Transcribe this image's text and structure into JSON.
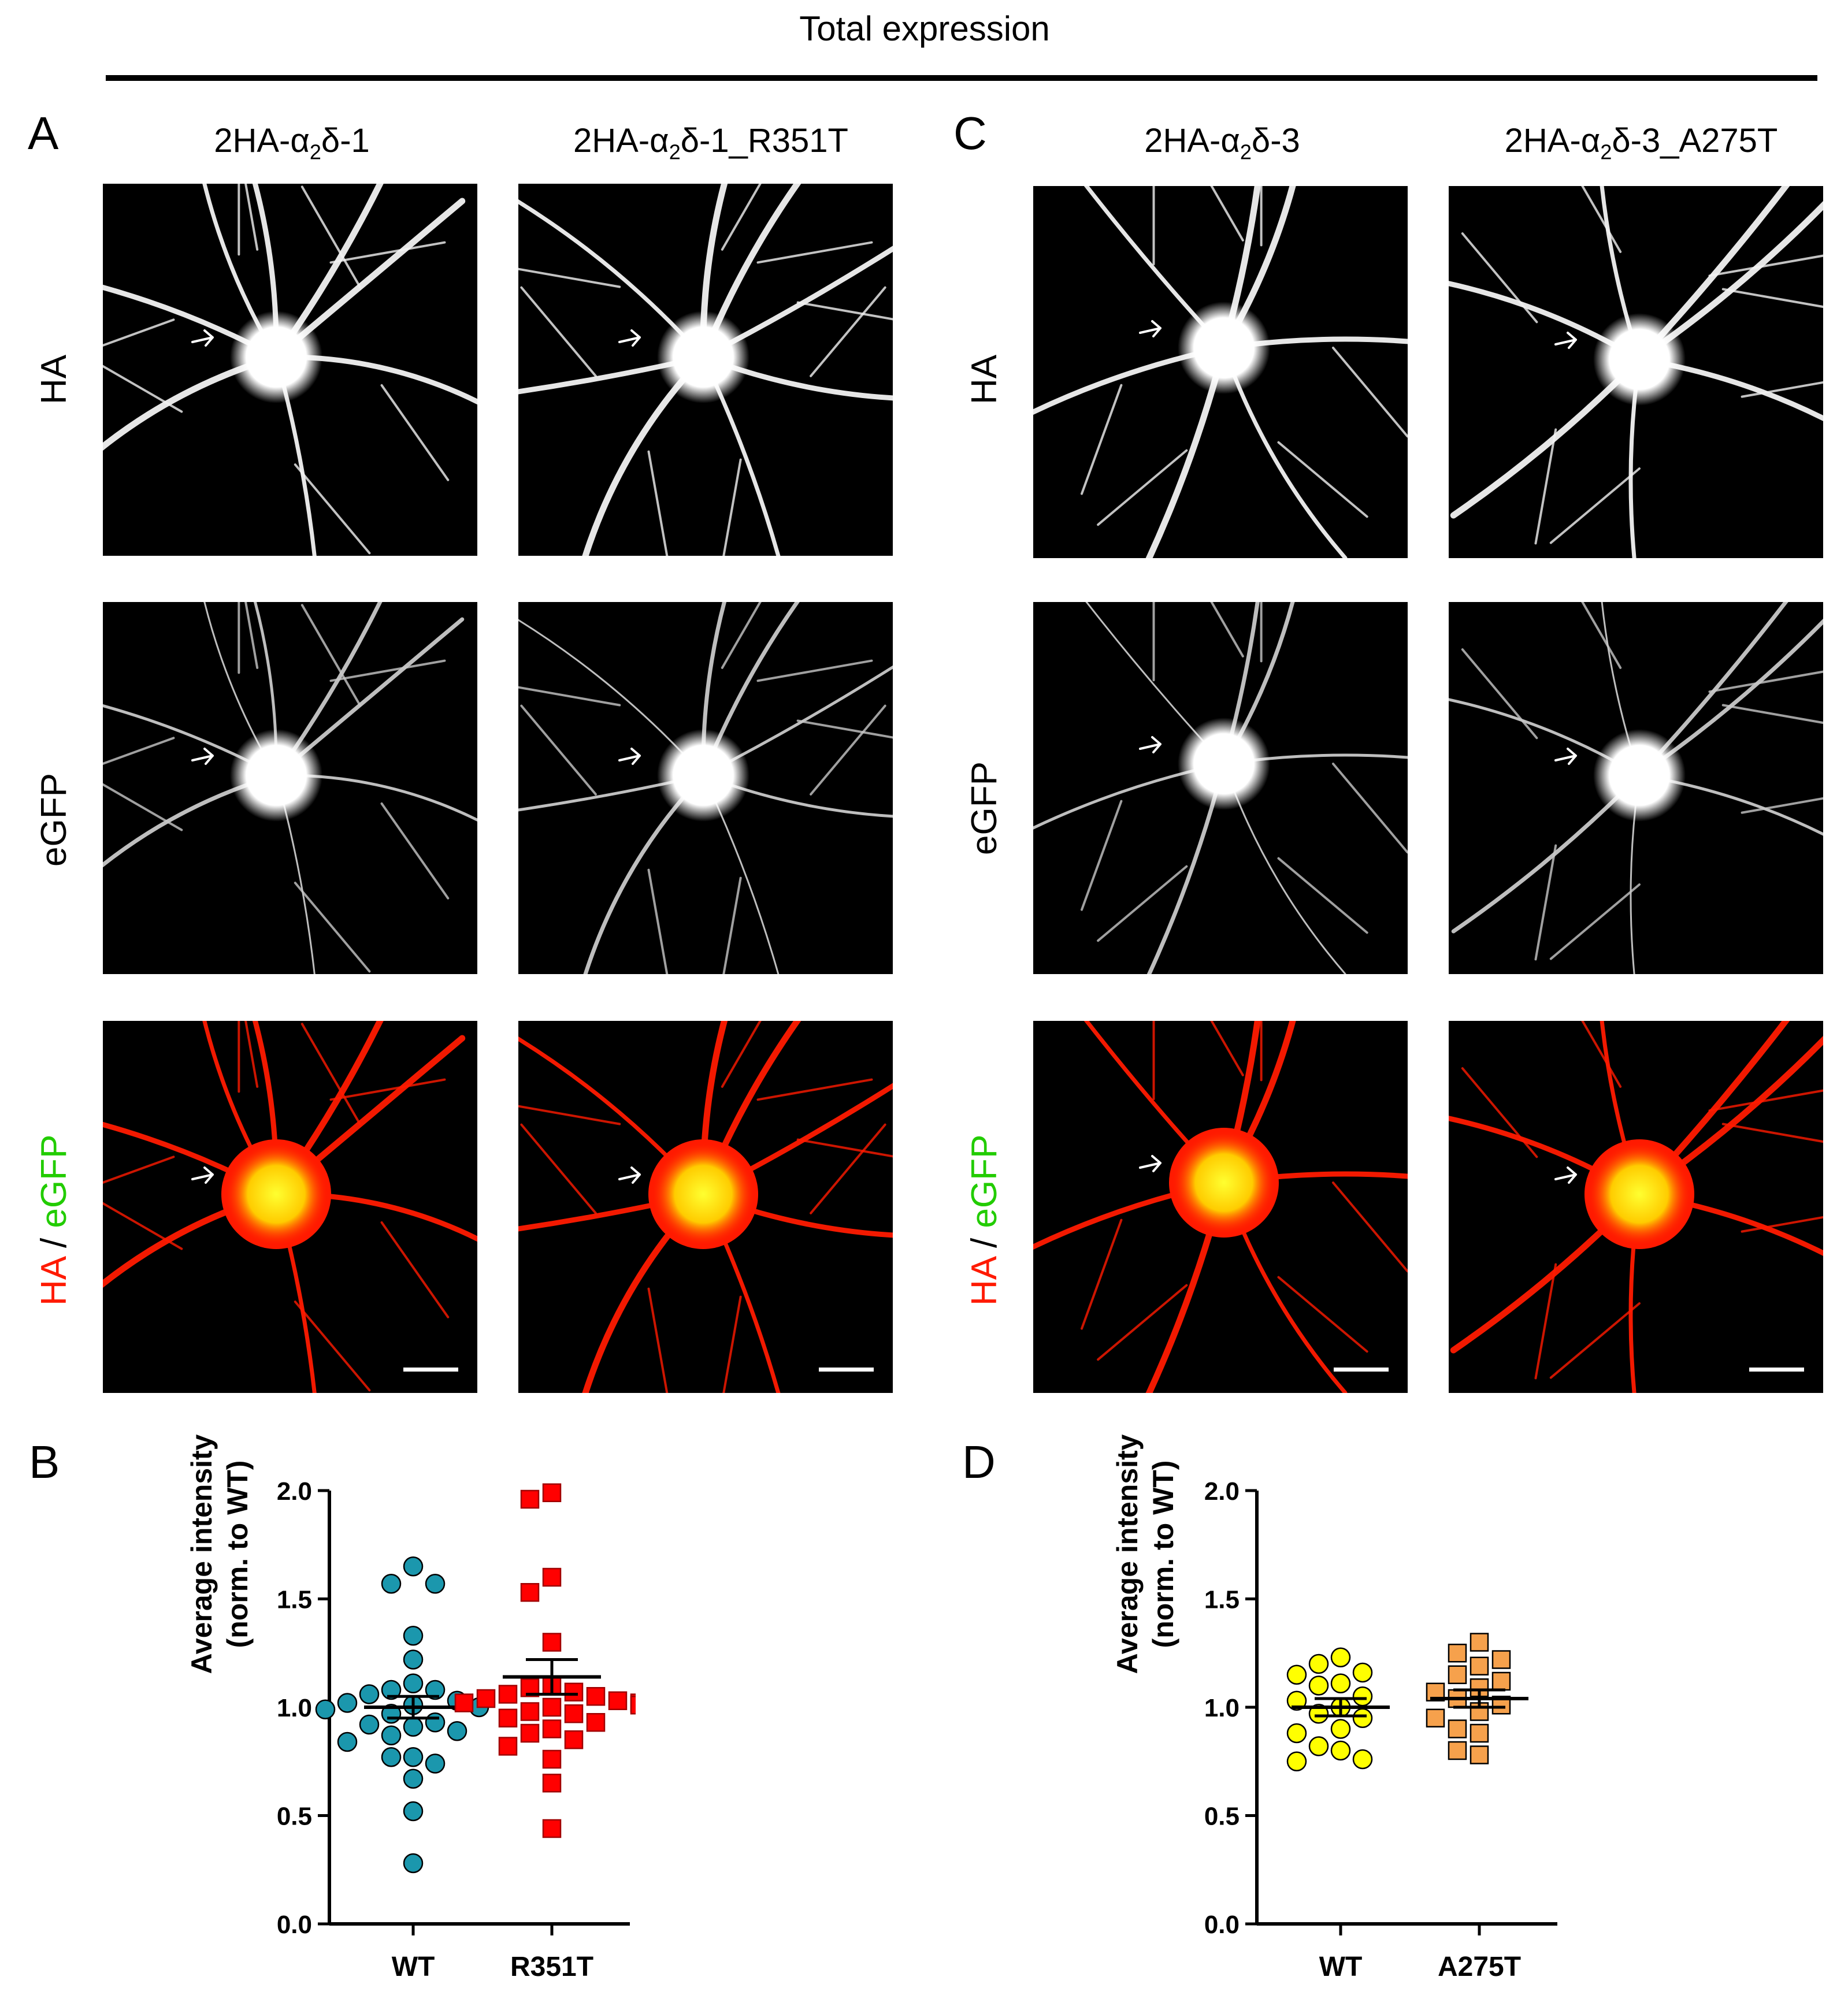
{
  "header": {
    "title": "Total expression"
  },
  "panel_letters": {
    "a": "A",
    "b": "B",
    "c": "C",
    "d": "D"
  },
  "column_headers": {
    "col1": {
      "prefix": "2HA-α",
      "sub": "2",
      "suffix": "δ-1"
    },
    "col2": {
      "prefix": "2HA-α",
      "sub": "2",
      "suffix": "δ-1_R351T"
    },
    "col3": {
      "prefix": "2HA-α",
      "sub": "2",
      "suffix": "δ-3"
    },
    "col4": {
      "prefix": "2HA-α",
      "sub": "2",
      "suffix": "δ-3_A275T"
    }
  },
  "row_labels": {
    "row1": "HA",
    "row2": "eGFP",
    "row3": {
      "red": "HA",
      "sep": " / ",
      "green": "eGFP"
    }
  },
  "colors": {
    "ha_red": "#ff1a00",
    "egfp_green": "#22cc00",
    "soma_yellow": "#ffff30",
    "wt_teal": "#1b97ad",
    "r351t_red": "#ff0000",
    "a275t_yellow": "#ffff00",
    "a275t_orange": "#f6a14c"
  },
  "chart_data": [
    {
      "panel": "B",
      "type": "scatter",
      "ylabel_line1": "Average intensity",
      "ylabel_line2": "(norm. to WT)",
      "ylim": [
        0,
        2.0
      ],
      "yticks": [
        "0.0",
        "0.5",
        "1.0",
        "1.5",
        "2.0"
      ],
      "categories": [
        "WT",
        "R351T"
      ],
      "series": [
        {
          "category": "WT",
          "marker": "circle",
          "color": "#1b97ad",
          "mean": 1.0,
          "sem": 0.05,
          "values": [
            1.65,
            1.57,
            1.57,
            1.33,
            1.22,
            1.11,
            1.08,
            1.08,
            1.06,
            1.03,
            1.02,
            1.01,
            1.0,
            0.99,
            0.97,
            0.93,
            0.92,
            0.91,
            0.89,
            0.87,
            0.84,
            0.77,
            0.77,
            0.74,
            0.67,
            0.52,
            0.28
          ]
        },
        {
          "category": "R351T",
          "marker": "square",
          "color": "#ff0000",
          "mean": 1.14,
          "sem": 0.08,
          "values": [
            1.99,
            1.96,
            1.6,
            1.53,
            1.3,
            1.1,
            1.09,
            1.07,
            1.06,
            1.05,
            1.04,
            1.03,
            1.02,
            1.02,
            1.01,
            1.0,
            0.98,
            0.97,
            0.95,
            0.93,
            0.9,
            0.88,
            0.85,
            0.82,
            0.76,
            0.65,
            0.44
          ]
        }
      ]
    },
    {
      "panel": "D",
      "type": "scatter",
      "ylabel_line1": "Average intensity",
      "ylabel_line2": "(norm. to WT)",
      "ylim": [
        0,
        2.0
      ],
      "yticks": [
        "0.0",
        "0.5",
        "1.0",
        "1.5",
        "2.0"
      ],
      "categories": [
        "WT",
        "A275T"
      ],
      "series": [
        {
          "category": "WT",
          "marker": "circle",
          "color": "#ffff00",
          "mean": 1.0,
          "sem": 0.04,
          "values": [
            1.23,
            1.2,
            1.16,
            1.15,
            1.11,
            1.1,
            1.05,
            1.03,
            1.0,
            0.97,
            0.95,
            0.9,
            0.88,
            0.82,
            0.8,
            0.76,
            0.75
          ]
        },
        {
          "category": "A275T",
          "marker": "square",
          "color": "#f6a14c",
          "mean": 1.04,
          "sem": 0.04,
          "values": [
            1.3,
            1.25,
            1.22,
            1.19,
            1.15,
            1.12,
            1.09,
            1.07,
            1.04,
            1.01,
            0.98,
            0.95,
            0.9,
            0.88,
            0.8,
            0.78
          ]
        }
      ]
    }
  ]
}
